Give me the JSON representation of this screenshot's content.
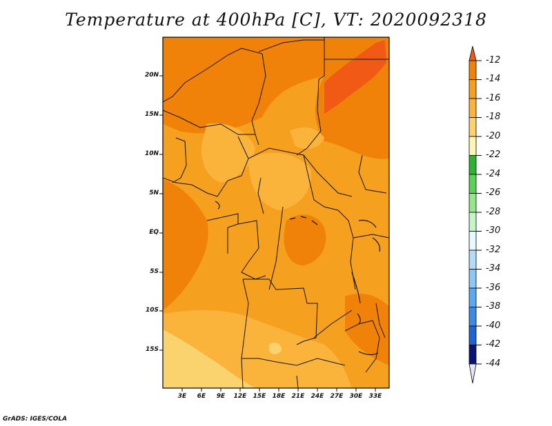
{
  "title": "Temperature at 400hPa [C], VT: 2020092318",
  "credit": "GrADS: IGES/COLA",
  "y_axis": {
    "ticks": [
      "20N",
      "15N",
      "10N",
      "5N",
      "EQ",
      "5S",
      "10S",
      "15S"
    ]
  },
  "x_axis": {
    "ticks": [
      "3E",
      "6E",
      "9E",
      "12E",
      "15E",
      "18E",
      "21E",
      "24E",
      "27E",
      "30E",
      "33E"
    ]
  },
  "colorbar": {
    "labels": [
      "-12",
      "-14",
      "-16",
      "-18",
      "-20",
      "-22",
      "-24",
      "-26",
      "-28",
      "-30",
      "-32",
      "-34",
      "-36",
      "-38",
      "-40",
      "-42",
      "-44"
    ],
    "colors": [
      "#f05a14",
      "#f0820a",
      "#f5a01e",
      "#fab43c",
      "#fad26e",
      "#fff5b4",
      "#2db432",
      "#5ad25a",
      "#96e68c",
      "#c8f5c8",
      "#e6faff",
      "#b4dcfa",
      "#8cc8f5",
      "#5aaaf0",
      "#3c8ce6",
      "#1e64d2",
      "#0a3cb4",
      "#0a1478",
      "#e6e6fa"
    ]
  },
  "map": {
    "region": "Central Africa",
    "lon_range": [
      0,
      35
    ],
    "lat_range": [
      -20,
      25
    ],
    "dominant_colors": {
      "level_minus14": "#f0820a",
      "level_minus16": "#f5a01e",
      "level_minus18": "#fab43c",
      "level_minus20": "#fad26e"
    }
  }
}
